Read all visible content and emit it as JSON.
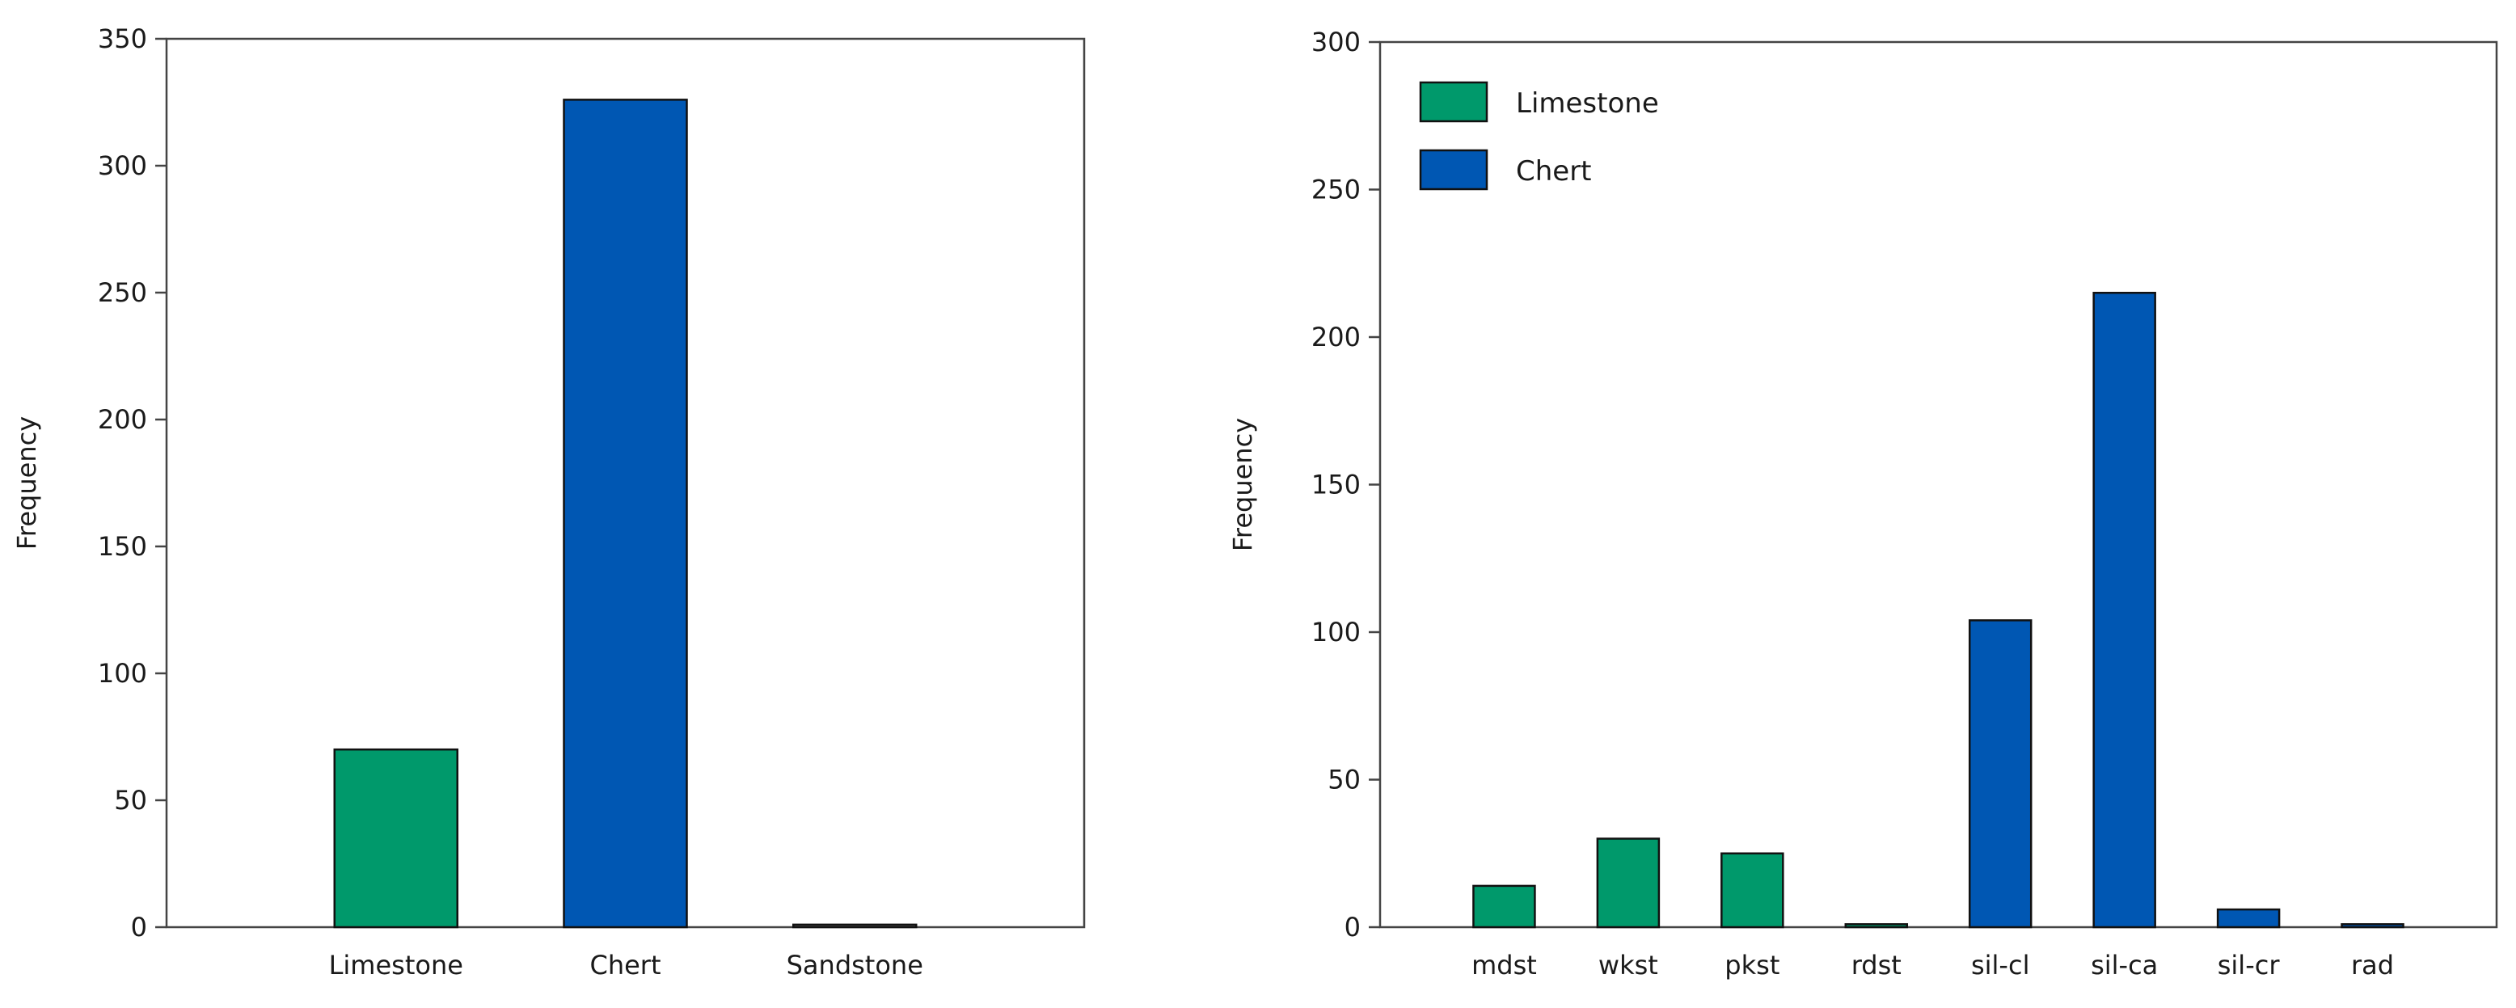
{
  "colors": {
    "limestone": "#00996B",
    "chert": "#0057B3",
    "sandstone": "#555555"
  },
  "chart_data": [
    {
      "type": "bar",
      "categories": [
        "Limestone",
        "Chert",
        "Sandstone"
      ],
      "values": [
        70,
        326,
        1
      ],
      "bar_colors": [
        "limestone",
        "chert",
        "sandstone"
      ],
      "xlabel": "",
      "ylabel": "Frequency",
      "ylim": [
        0,
        350
      ],
      "yticks": [
        0,
        50,
        100,
        150,
        200,
        250,
        300,
        350
      ],
      "grid": false,
      "legend": null
    },
    {
      "type": "bar",
      "categories": [
        "mdst",
        "wkst",
        "pkst",
        "rdst",
        "sil-cl",
        "sil-ca",
        "sil-cr",
        "rad"
      ],
      "values": [
        14,
        30,
        25,
        1,
        104,
        215,
        6,
        1
      ],
      "bar_colors": [
        "limestone",
        "limestone",
        "limestone",
        "limestone",
        "chert",
        "chert",
        "chert",
        "chert"
      ],
      "xlabel": "",
      "ylabel": "Frequency",
      "ylim": [
        0,
        300
      ],
      "yticks": [
        0,
        50,
        100,
        150,
        200,
        250,
        300
      ],
      "grid": false,
      "legend": {
        "placement": "top-left",
        "entries": [
          {
            "label": "Limestone",
            "color": "limestone"
          },
          {
            "label": "Chert",
            "color": "chert"
          }
        ]
      }
    }
  ]
}
